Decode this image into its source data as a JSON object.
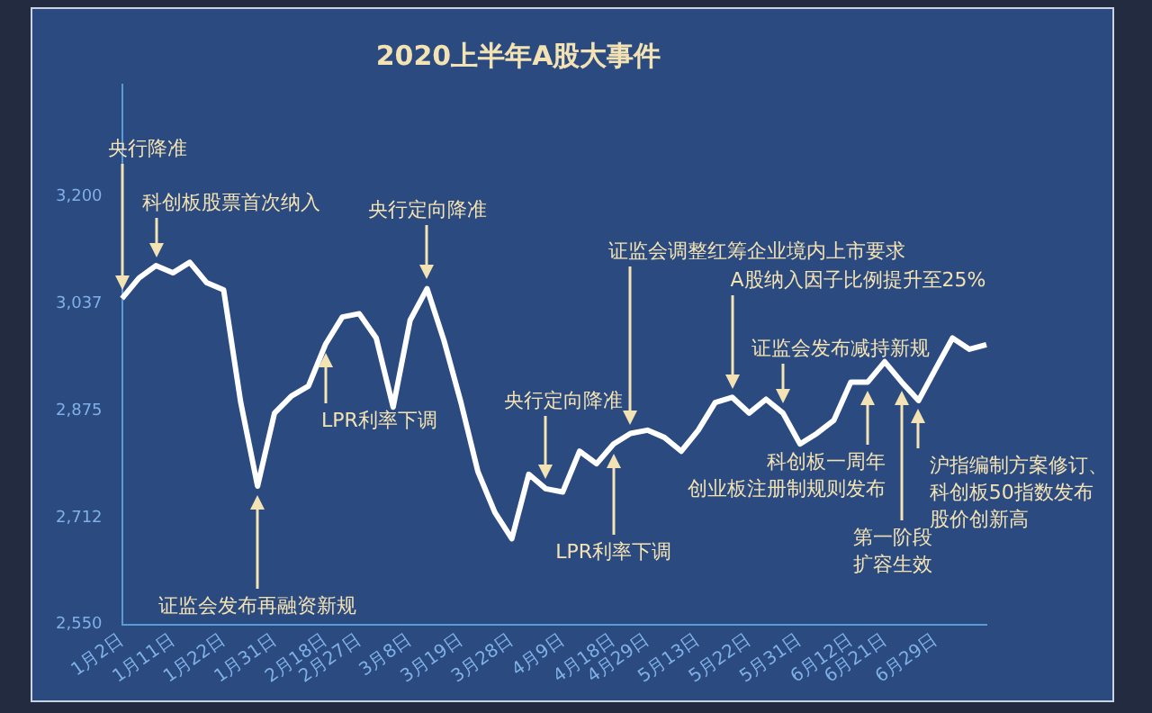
{
  "chart_data": {
    "type": "line",
    "title": "2020上半年A股大事件",
    "categories": [
      "1月2日",
      null,
      null,
      "1月11日",
      null,
      null,
      "1月22日",
      null,
      null,
      "1月31日",
      null,
      null,
      "2月18日",
      null,
      "2月27日",
      null,
      null,
      "3月8日",
      null,
      null,
      "3月19日",
      null,
      null,
      "3月28日",
      null,
      null,
      "4月9日",
      null,
      null,
      "4月18日",
      null,
      "4月29日",
      null,
      null,
      "5月13日",
      null,
      null,
      "5月22日",
      null,
      null,
      "5月31日",
      null,
      null,
      "6月12日",
      null,
      "6月21日",
      null,
      null,
      "6月29日",
      null,
      null,
      null
    ],
    "values": [
      3045,
      3076,
      3095,
      3084,
      3100,
      3069,
      3058,
      2888,
      2760,
      2871,
      2897,
      2912,
      2975,
      3017,
      3022,
      2985,
      2880,
      3012,
      3060,
      2981,
      2887,
      2782,
      2720,
      2680,
      2778,
      2756,
      2751,
      2813,
      2794,
      2824,
      2840,
      2845,
      2834,
      2813,
      2845,
      2887,
      2895,
      2871,
      2892,
      2871,
      2824,
      2840,
      2860,
      2918,
      2918,
      2949,
      2918,
      2890,
      2938,
      2985,
      2968,
      2975
    ],
    "color": "#ffffff",
    "ylim": [
      2550,
      3370
    ],
    "yticks": [
      {
        "value": 2550,
        "label": "2,550"
      },
      {
        "value": 2712,
        "label": "2,712"
      },
      {
        "value": 2875,
        "label": "2,875"
      },
      {
        "value": 3037,
        "label": "3,037"
      },
      {
        "value": 3200,
        "label": "3,200"
      }
    ],
    "marker": "none",
    "line_style": "solid",
    "annotations": [
      "央行降准",
      "科创板股票首次纳入",
      "央行定向降准",
      "证监会发布再融资新规",
      "LPR利率下调",
      "央行定向降准",
      "LPR利率下调",
      "证监会调整红筹企业境内上市要求",
      "A股纳入因子比例提升至25%",
      "证监会发布减持新规",
      "科创板一周年",
      "创业板注册制规则发布",
      "沪指编制方案修订、",
      "科创板50指数发布",
      "股价创新高",
      "第一阶段扩容生效"
    ]
  }
}
